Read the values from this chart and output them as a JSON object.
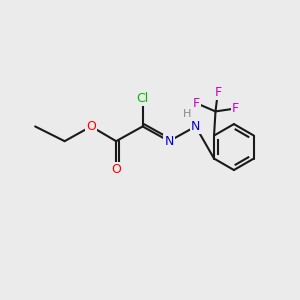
{
  "background_color": "#ebebeb",
  "bond_color": "#1a1a1a",
  "bond_width": 1.5,
  "atom_colors": {
    "Cl": "#00bb00",
    "O": "#ff0000",
    "N": "#0000cc",
    "F": "#cc00cc",
    "H": "#888888",
    "C": "#1a1a1a"
  },
  "font_size": 9
}
